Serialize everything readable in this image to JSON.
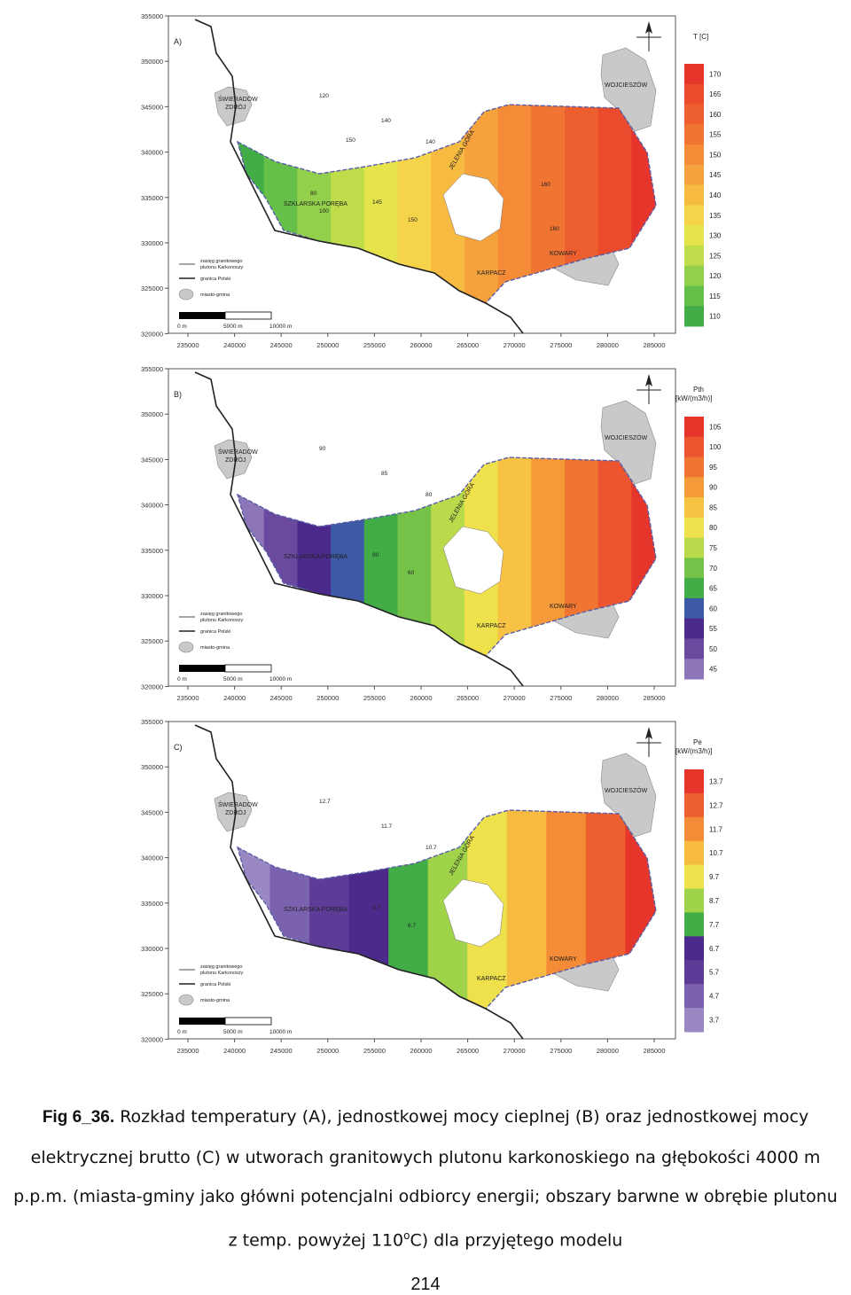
{
  "common": {
    "y_ticks": [
      "355000",
      "350000",
      "345000",
      "340000",
      "335000",
      "330000",
      "325000",
      "320000"
    ],
    "x_ticks": [
      "235000",
      "240000",
      "245000",
      "250000",
      "255000",
      "260000",
      "265000",
      "270000",
      "275000",
      "280000",
      "285000"
    ],
    "places": {
      "swieradow": [
        "ŚWIERADÓW",
        "ZDRÓJ"
      ],
      "wojcieszow": "WOJCIESZÓW",
      "szklarska": "SZKLARSKA PORĘBA",
      "jelenia": "JELENIA GÓRA",
      "karpacz": "KARPACZ",
      "kowary": "KOWARY"
    },
    "legend_items": [
      "zasięg granitowego",
      "plutonu Karkonoszy",
      "granica Polski",
      "miasto-gmina"
    ],
    "scale_labels": [
      "0 m",
      "5000 m",
      "10000 m"
    ],
    "north_icon": "north-arrow-icon"
  },
  "panels": [
    {
      "letter": "A)",
      "legend_title": [
        "T [C]"
      ],
      "scale_values": [
        "170",
        "165",
        "160",
        "155",
        "150",
        "145",
        "140",
        "135",
        "130",
        "125",
        "120",
        "115",
        "110"
      ],
      "colors": [
        "#e6352b",
        "#ea4b2d",
        "#ee5f30",
        "#f07532",
        "#f48b36",
        "#f6a23c",
        "#f8bb42",
        "#f6d44a",
        "#e6e44c",
        "#bfdc4a",
        "#92cf4a",
        "#66bf48",
        "#42ad46"
      ],
      "inner_white": true,
      "contour_labels": [
        "120",
        "140",
        "140",
        "145",
        "150",
        "160",
        "160",
        "150",
        "80",
        "100"
      ]
    },
    {
      "letter": "B)",
      "legend_title": [
        "Pth",
        "[kW/(m3/h)]"
      ],
      "scale_values": [
        "105",
        "100",
        "95",
        "90",
        "85",
        "80",
        "75",
        "70",
        "65",
        "60",
        "55",
        "50",
        "45"
      ],
      "colors": [
        "#e6352b",
        "#ec5530",
        "#f07532",
        "#f49a38",
        "#f8c244",
        "#efe14b",
        "#b9da4a",
        "#74c348",
        "#42ad46",
        "#3c5aa6",
        "#4b2a8c",
        "#6a4a9e",
        "#8c76b8"
      ],
      "inner_white": false,
      "contour_labels": [
        "90",
        "85",
        "80",
        "90",
        "60"
      ]
    },
    {
      "letter": "C)",
      "legend_title": [
        "Pe",
        "[kW/(m3/h)]"
      ],
      "scale_values": [
        "13.7",
        "12.7",
        "11.7",
        "10.7",
        "9.7",
        "8.7",
        "7.7",
        "6.7",
        "5.7",
        "4.7",
        "3.7"
      ],
      "colors": [
        "#e6352b",
        "#ee5f30",
        "#f48b36",
        "#f8bb42",
        "#efe14b",
        "#9fd34a",
        "#42ad46",
        "#4b2a8c",
        "#5d3c98",
        "#7a62ae",
        "#9a88c2"
      ],
      "inner_white": false,
      "contour_labels": [
        "12.7",
        "11.7",
        "10.7",
        "9.7",
        "6.7"
      ]
    }
  ],
  "caption": {
    "lead": "Fig 6_36.",
    "line1": "Rozkład temperatury (A), jednostkowej mocy cieplnej (B) oraz jednostkowej mocy",
    "line2": "elektrycznej brutto (C) w utworach granitowych plutonu karkonoskiego na głębokości 4000 m",
    "line3": "p.p.m. (miasta-gminy jako główni potencjalni odbiorcy energii; obszary barwne w obrębie plutonu",
    "line4a": "z temp. powyżej 110",
    "line4sup": "o",
    "line4b": "C) dla przyjętego modelu"
  },
  "page_number": "214"
}
